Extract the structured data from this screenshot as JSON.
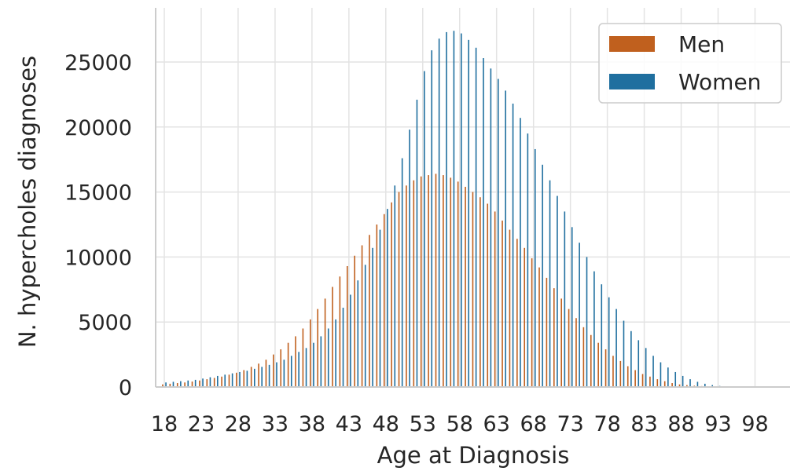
{
  "chart_data": {
    "type": "bar",
    "xlabel": "Age at Diagnosis",
    "ylabel": "N. hypercholes diagnoses",
    "ylim": [
      0,
      27500
    ],
    "xlim": [
      18,
      98
    ],
    "grid": true,
    "legend_position": "top-right",
    "y_ticks": [
      "0",
      "5000",
      "10000",
      "15000",
      "20000",
      "25000"
    ],
    "x_ticks": [
      "18",
      "23",
      "28",
      "33",
      "38",
      "43",
      "48",
      "53",
      "58",
      "63",
      "68",
      "73",
      "78",
      "83",
      "88",
      "93",
      "98"
    ],
    "colors": {
      "Men": "#c0601e",
      "Women": "#1f6f9f"
    },
    "x": [
      18,
      19,
      20,
      21,
      22,
      23,
      24,
      25,
      26,
      27,
      28,
      29,
      30,
      31,
      32,
      33,
      34,
      35,
      36,
      37,
      38,
      39,
      40,
      41,
      42,
      43,
      44,
      45,
      46,
      47,
      48,
      49,
      50,
      51,
      52,
      53,
      54,
      55,
      56,
      57,
      58,
      59,
      60,
      61,
      62,
      63,
      64,
      65,
      66,
      67,
      68,
      69,
      70,
      71,
      72,
      73,
      74,
      75,
      76,
      77,
      78,
      79,
      80,
      81,
      82,
      83,
      84,
      85,
      86,
      87,
      88,
      89,
      90,
      91,
      92,
      93,
      94,
      95,
      96,
      97
    ],
    "series": [
      {
        "name": "Men",
        "values": [
          200,
          250,
          300,
          350,
          420,
          500,
          600,
          700,
          800,
          950,
          1100,
          1300,
          1550,
          1800,
          2100,
          2500,
          2900,
          3400,
          3900,
          4500,
          5200,
          6000,
          6800,
          7700,
          8500,
          9300,
          10100,
          10900,
          11700,
          12500,
          13300,
          14200,
          15000,
          15500,
          15900,
          16200,
          16300,
          16400,
          16300,
          16100,
          15800,
          15400,
          15000,
          14600,
          14100,
          13500,
          12800,
          12100,
          11400,
          10700,
          9900,
          9200,
          8400,
          7600,
          6800,
          6000,
          5300,
          4600,
          4000,
          3400,
          2900,
          2400,
          2000,
          1600,
          1300,
          1000,
          800,
          600,
          450,
          300,
          200,
          150,
          100,
          70,
          40,
          20,
          10,
          5,
          2,
          1
        ]
      },
      {
        "name": "Women",
        "values": [
          350,
          400,
          450,
          500,
          550,
          650,
          750,
          850,
          950,
          1050,
          1150,
          1250,
          1400,
          1550,
          1700,
          1900,
          2100,
          2400,
          2700,
          3000,
          3400,
          3900,
          4500,
          5200,
          6100,
          7100,
          8200,
          9400,
          10700,
          12100,
          13700,
          15500,
          17600,
          19800,
          22100,
          24300,
          25900,
          26800,
          27300,
          27400,
          27200,
          26700,
          26100,
          25300,
          24500,
          23700,
          22800,
          21800,
          20700,
          19500,
          18300,
          17100,
          15900,
          14700,
          13500,
          12300,
          11100,
          10000,
          8900,
          7900,
          6900,
          6000,
          5100,
          4300,
          3600,
          3000,
          2400,
          1900,
          1500,
          1150,
          850,
          600,
          400,
          250,
          150,
          80,
          40,
          20,
          10,
          5
        ]
      }
    ]
  }
}
